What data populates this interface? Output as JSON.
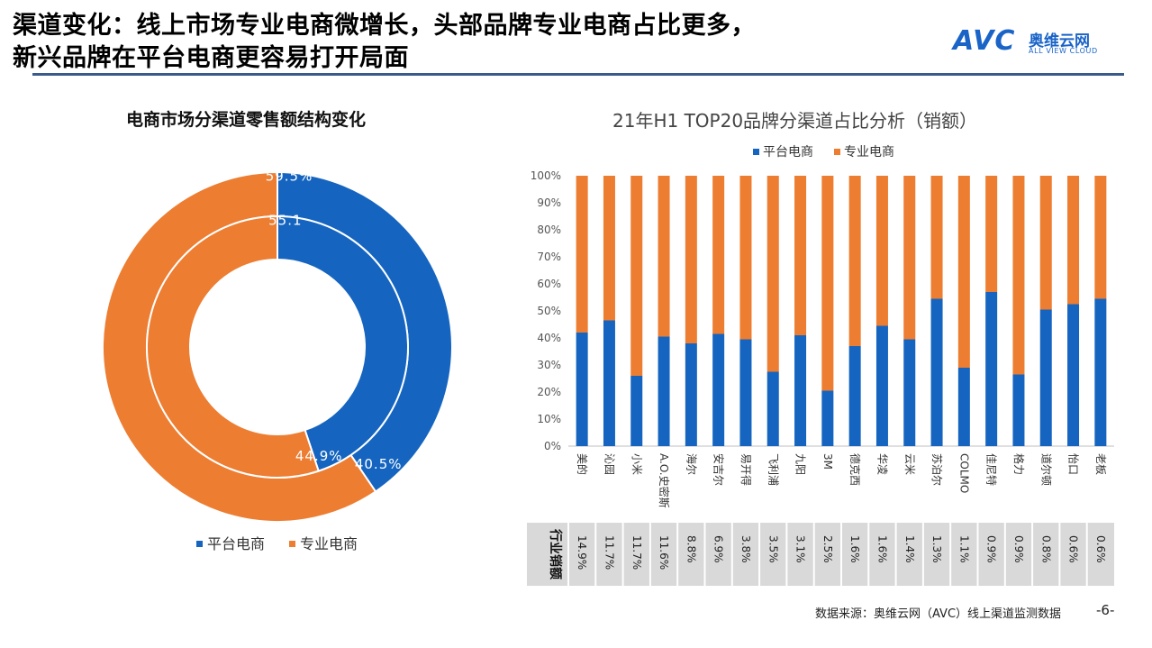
{
  "header": {
    "title_line1": "渠道变化：线上市场专业电商微增长，头部品牌专业电商占比更多，",
    "title_line2": "新兴品牌在平台电商更容易打开局面",
    "logo_text": "AVC",
    "logo_cn": "奥维云网",
    "logo_en": "ALL VIEW CLOUD"
  },
  "footer": {
    "source": "数据来源：奥维云网（AVC）线上渠道监测数据",
    "page": "-6-"
  },
  "colors": {
    "platform": "#1565c0",
    "professional": "#ed7d31"
  },
  "chart_data": [
    {
      "type": "pie",
      "title": "电商市场分渠道零售额结构变化",
      "legend": [
        "平台电商",
        "专业电商"
      ],
      "legend_position": "bottom",
      "rings": [
        {
          "ring": "outer",
          "labels": [
            "40.5%",
            "59.5%"
          ],
          "values": [
            40.5,
            59.5
          ]
        },
        {
          "ring": "inner",
          "labels": [
            "44.9%",
            "55.1"
          ],
          "values": [
            44.9,
            55.1
          ]
        }
      ]
    },
    {
      "type": "bar",
      "stacked": true,
      "title": "21年H1 TOP20品牌分渠道占比分析（销额）",
      "legend_position": "top",
      "categories": [
        "美的",
        "沁园",
        "小米",
        "A.O.史密斯",
        "海尔",
        "安吉尔",
        "易开得",
        "飞利浦",
        "九阳",
        "3M",
        "德克西",
        "华凌",
        "云米",
        "苏泊尔",
        "COLMO",
        "佳尼特",
        "格力",
        "道尔顿",
        "怡口",
        "老板"
      ],
      "series": [
        {
          "name": "平台电商",
          "values": [
            42,
            46.5,
            26,
            40.5,
            38,
            41.5,
            39.5,
            27.5,
            41,
            20.5,
            37,
            44.5,
            39.5,
            54.5,
            29,
            57,
            26.5,
            50.5,
            52.5,
            54.5
          ]
        },
        {
          "name": "专业电商",
          "values": [
            58,
            53.5,
            74,
            59.5,
            62,
            58.5,
            60.5,
            72.5,
            59,
            79.5,
            63,
            55.5,
            60.5,
            45.5,
            71,
            43,
            73.5,
            49.5,
            47.5,
            45.5
          ]
        }
      ],
      "yticks": [
        "0%",
        "10%",
        "20%",
        "30%",
        "40%",
        "50%",
        "60%",
        "70%",
        "80%",
        "90%",
        "100%"
      ],
      "ylim": [
        0,
        100
      ],
      "grid": false,
      "table": {
        "header": "行业销额",
        "values": [
          "14.9%",
          "11.7%",
          "11.7%",
          "11.6%",
          "8.8%",
          "6.9%",
          "3.8%",
          "3.5%",
          "3.1%",
          "2.5%",
          "1.6%",
          "1.6%",
          "1.4%",
          "1.3%",
          "1.1%",
          "0.9%",
          "0.9%",
          "0.8%",
          "0.6%",
          "0.6%"
        ]
      }
    }
  ]
}
